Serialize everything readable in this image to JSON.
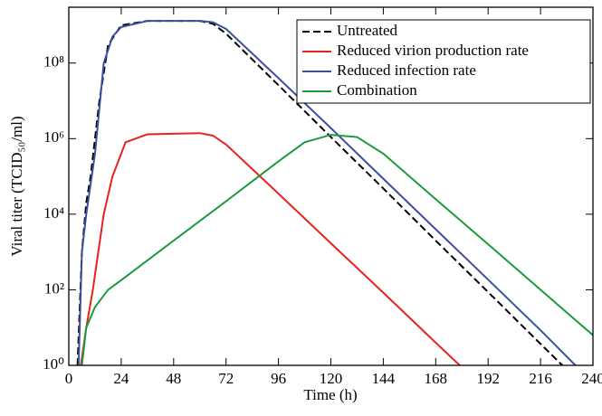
{
  "chart_data": {
    "type": "line",
    "xlabel": "Time (h)",
    "ylabel": "Viral titer (TCID₅₀/ml)",
    "xlim": [
      0,
      240
    ],
    "xticks": [
      0,
      24,
      48,
      72,
      96,
      120,
      144,
      168,
      192,
      216,
      240
    ],
    "ylim": [
      1,
      3000000000
    ],
    "yscale": "log",
    "yticks": [
      {
        "value": 1,
        "label": "10⁰"
      },
      {
        "value": 100,
        "label": "10²"
      },
      {
        "value": 10000,
        "label": "10⁴"
      },
      {
        "value": 1000000,
        "label": "10⁶"
      },
      {
        "value": 100000000,
        "label": "10⁸"
      }
    ],
    "legend": "upper right",
    "series": [
      {
        "name": "Untreated",
        "color": "#000000",
        "linestyle": "dashed",
        "x": [
          4,
          6,
          8,
          10,
          14,
          18,
          24,
          36,
          60,
          66,
          72,
          96,
          120,
          144,
          168,
          192,
          216,
          226
        ],
        "values": [
          1,
          1000,
          20000,
          100000,
          10000000,
          300000000,
          1000000000,
          1300000000,
          1300000000,
          1100000000,
          600000000,
          26000000,
          1100000,
          48000,
          2000,
          87,
          3.7,
          1
        ]
      },
      {
        "name": "Reduced virion production rate",
        "color": "#e8231f",
        "linestyle": "solid",
        "x": [
          5.5,
          8,
          11,
          16,
          20,
          26,
          36,
          60,
          66,
          72,
          96,
          120,
          144,
          168,
          179
        ],
        "values": [
          1,
          10,
          100,
          10000,
          100000,
          800000,
          1300000,
          1400000,
          1200000,
          700000,
          35000,
          1700,
          84,
          4,
          1
        ]
      },
      {
        "name": "Reduced infection rate",
        "color": "#3a4fa0",
        "linestyle": "solid",
        "x": [
          4.5,
          6,
          8,
          12,
          16,
          20,
          24,
          36,
          60,
          66,
          72,
          96,
          120,
          144,
          168,
          192,
          216,
          232
        ],
        "values": [
          1,
          1000,
          10000,
          400000,
          100000000,
          500000000,
          900000000,
          1300000000,
          1300000000,
          1200000000,
          800000000,
          40000000,
          1900000,
          87000,
          4000,
          186,
          8.5,
          1
        ]
      },
      {
        "name": "Combination",
        "color": "#1b9a3e",
        "linestyle": "solid",
        "x": [
          6,
          8,
          12,
          18,
          24,
          48,
          72,
          96,
          108,
          120,
          132,
          144,
          168,
          192,
          216,
          240
        ],
        "values": [
          1,
          10,
          35,
          100,
          180,
          2000,
          22000,
          250000,
          800000,
          1260000,
          1100000,
          400000,
          25000,
          1600,
          100,
          6.3
        ]
      }
    ]
  }
}
